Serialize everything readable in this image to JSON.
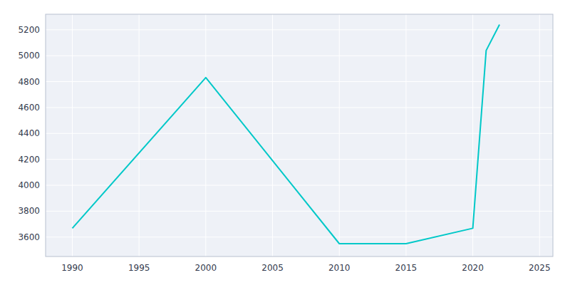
{
  "chart_data": {
    "type": "line",
    "x": [
      1990,
      2000,
      2010,
      2015,
      2020,
      2021,
      2022
    ],
    "values": [
      3668,
      4831,
      3549,
      3549,
      3668,
      5040,
      5240
    ],
    "color": "#00c8c8",
    "xlim": [
      1988,
      2026
    ],
    "ylim": [
      3450,
      5320
    ],
    "xticks": [
      1990,
      1995,
      2000,
      2005,
      2010,
      2015,
      2020,
      2025
    ],
    "yticks": [
      3600,
      3800,
      4000,
      4200,
      4400,
      4600,
      4800,
      5000,
      5200
    ],
    "grid": true
  }
}
